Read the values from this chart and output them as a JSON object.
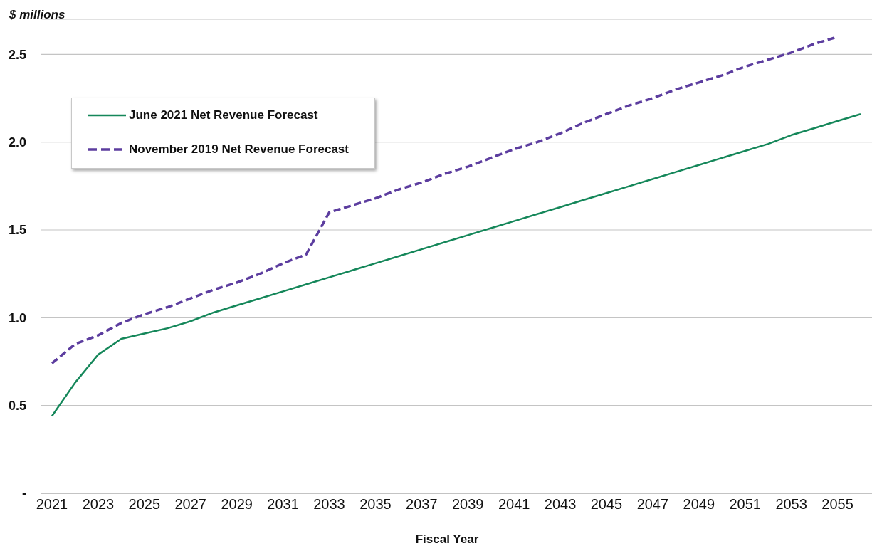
{
  "chart_data": {
    "type": "line",
    "ylabel": "$ millions",
    "xlabel": "Fiscal Year",
    "categories": [
      "2021",
      null,
      "2023",
      null,
      "2025",
      null,
      "2027",
      null,
      "2029",
      null,
      "2031",
      null,
      "2033",
      null,
      "2035",
      null,
      "2037",
      null,
      "2039",
      null,
      "2041",
      null,
      "2043",
      null,
      "2045",
      null,
      "2047",
      null,
      "2049",
      null,
      "2051",
      null,
      "2053",
      null,
      "2055",
      null
    ],
    "series": [
      {
        "name": "June 2021 Net Revenue Forecast",
        "color": "#15875a",
        "line_style": "solid",
        "values": [
          0.44,
          0.63,
          0.79,
          0.88,
          0.91,
          0.94,
          0.98,
          1.03,
          1.07,
          1.11,
          1.15,
          1.19,
          1.23,
          1.27,
          1.31,
          1.35,
          1.39,
          1.43,
          1.47,
          1.51,
          1.55,
          1.59,
          1.63,
          1.67,
          1.71,
          1.75,
          1.79,
          1.83,
          1.87,
          1.91,
          1.95,
          1.99,
          2.04,
          2.08,
          2.12,
          2.16
        ]
      },
      {
        "name": "November 2019 Net Revenue Forecast",
        "color": "#5c3d9f",
        "line_style": "dashed",
        "values": [
          0.74,
          0.85,
          0.9,
          0.97,
          1.02,
          1.06,
          1.11,
          1.16,
          1.2,
          1.25,
          1.31,
          1.36,
          1.6,
          1.64,
          1.68,
          1.73,
          1.77,
          1.82,
          1.86,
          1.91,
          1.96,
          2.0,
          2.05,
          2.11,
          2.16,
          2.21,
          2.25,
          2.3,
          2.34,
          2.38,
          2.43,
          2.47,
          2.51,
          2.56,
          2.6,
          null
        ]
      }
    ],
    "ylim": [
      0,
      2.7
    ],
    "yticks": [
      {
        "value": 0,
        "label": "-"
      },
      0.5,
      {
        "value": 1,
        "label": "1.0"
      },
      1.5,
      {
        "value": 2,
        "label": "2.0"
      },
      2.5
    ],
    "grid": "y",
    "legend": "top left"
  }
}
